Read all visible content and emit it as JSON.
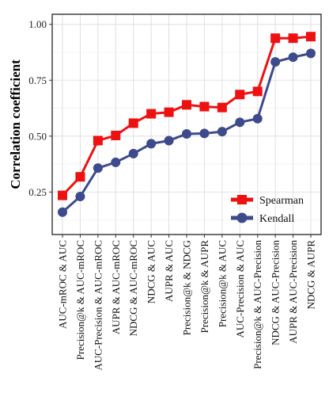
{
  "chart_data": {
    "type": "line",
    "xlabel": "",
    "ylabel": "Correlation coefficient",
    "ylim": [
      0.06,
      1.045
    ],
    "yticks": [
      0.25,
      0.5,
      0.75,
      1.0
    ],
    "ytick_labels": [
      "0.25",
      "0.50",
      "0.75",
      "1.00"
    ],
    "grid": true,
    "legend_position": "bottom-right",
    "categories": [
      "AUC-mROC & AUC",
      "Precision@k & AUC-mROC",
      "AUC-Precision & AUC-mROC",
      "AUPR & AUC-mROC",
      "NDCG & AUC-mROC",
      "NDCG & AUC",
      "AUPR & AUC",
      "Precision@k & NDCG",
      "Precision@k & AUPR",
      "Precision@k & AUC",
      "AUC-Precision & AUC",
      "Precision@k & AUC-Precision",
      "NDCG & AUC-Precision",
      "AUPR & AUC-Precision",
      "NDCG & AUPR"
    ],
    "series": [
      {
        "name": "Spearman",
        "color": "#ee1111",
        "marker": "square",
        "values": [
          0.235,
          0.318,
          0.48,
          0.503,
          0.558,
          0.6,
          0.607,
          0.64,
          0.632,
          0.628,
          0.686,
          0.7,
          0.938,
          0.938,
          0.945
        ]
      },
      {
        "name": "Kendall",
        "color": "#3d4a8c",
        "marker": "circle",
        "values": [
          0.16,
          0.23,
          0.357,
          0.383,
          0.422,
          0.466,
          0.48,
          0.51,
          0.512,
          0.52,
          0.562,
          0.578,
          0.832,
          0.853,
          0.87
        ]
      }
    ]
  }
}
